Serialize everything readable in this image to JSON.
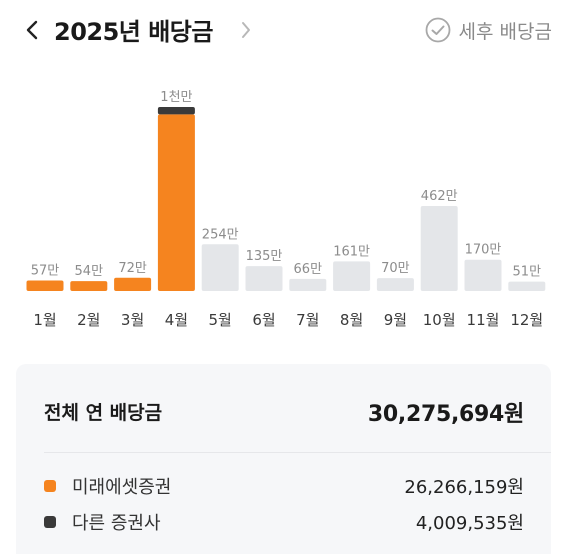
{
  "header": {
    "title": "2025년 배당금",
    "after_tax_label": "세후 배당금"
  },
  "colors": {
    "orange": "#F5841F",
    "dark": "#3A3A3A",
    "gray_bar": "#E4E6E9"
  },
  "chart_data": {
    "type": "bar",
    "unit": "만",
    "categories": [
      "1월",
      "2월",
      "3월",
      "4월",
      "5월",
      "6월",
      "7월",
      "8월",
      "9월",
      "10월",
      "11월",
      "12월"
    ],
    "value_labels": [
      "57만",
      "54만",
      "72만",
      "1천만",
      "254만",
      "135만",
      "66만",
      "161만",
      "70만",
      "462만",
      "170만",
      "51만"
    ],
    "series": [
      {
        "name": "미래에셋증권",
        "values": [
          57,
          54,
          72,
          960,
          0,
          0,
          0,
          0,
          0,
          0,
          0,
          0
        ]
      },
      {
        "name": "다른 증권사",
        "values": [
          0,
          0,
          0,
          40,
          0,
          0,
          0,
          0,
          0,
          0,
          0,
          0
        ]
      },
      {
        "values": [
          0,
          0,
          0,
          0,
          254,
          135,
          66,
          161,
          70,
          462,
          170,
          51
        ]
      }
    ],
    "ylim": [
      0,
      1000
    ]
  },
  "summary": {
    "total_label": "전체 연 배당금",
    "total_value": "30,275,694원",
    "brokers": [
      {
        "name": "미래에셋증권",
        "amount": "26,266,159원",
        "color": "#F5841F"
      },
      {
        "name": "다른 증권사",
        "amount": "4,009,535원",
        "color": "#3A3A3A"
      }
    ]
  }
}
